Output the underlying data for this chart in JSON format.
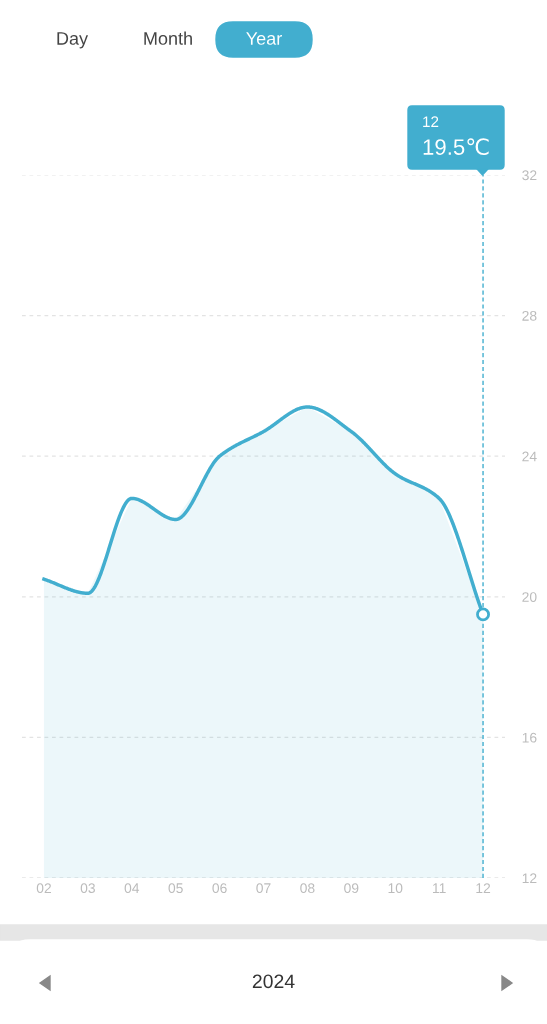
{
  "chart_data": {
    "type": "area",
    "x": [
      2,
      3,
      4,
      5,
      6,
      7,
      8,
      9,
      10,
      11,
      12
    ],
    "series": [
      {
        "color": "#42aecf",
        "values": [
          20.5,
          20.1,
          22.8,
          22.2,
          24.0,
          24.7,
          25.4,
          24.7,
          23.5,
          22.8,
          19.5
        ]
      }
    ],
    "xlim": [
      1.5,
      12.5
    ],
    "xticks": [
      {
        "value": 2,
        "label": "02"
      },
      {
        "value": 3,
        "label": "03"
      },
      {
        "value": 4,
        "label": "04"
      },
      {
        "value": 5,
        "label": "05"
      },
      {
        "value": 6,
        "label": "06"
      },
      {
        "value": 7,
        "label": "07"
      },
      {
        "value": 8,
        "label": "08"
      },
      {
        "value": 9,
        "label": "09"
      },
      {
        "value": 10,
        "label": "10"
      },
      {
        "value": 11,
        "label": "11"
      },
      {
        "value": 12,
        "label": "12"
      }
    ],
    "ylim": [
      12,
      32
    ],
    "yticks": [
      12,
      16,
      20,
      24,
      28,
      32
    ],
    "grid": "y",
    "ref_lines": [
      {
        "axis": "x",
        "value": 12,
        "color": "#42aecf",
        "line_style": "dashed"
      }
    ],
    "annotations": [
      "12",
      "19.5℃",
      "Day",
      "Month",
      "Year",
      "2024"
    ]
  }
}
